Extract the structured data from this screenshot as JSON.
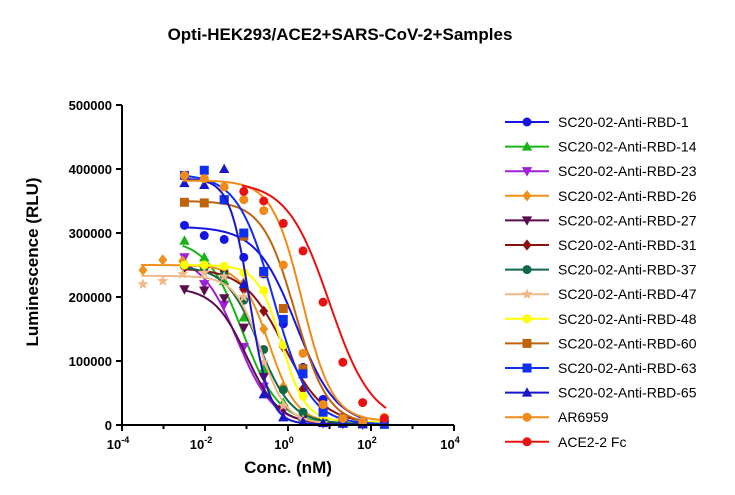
{
  "chart_data": {
    "type": "scatter",
    "title": "Opti-HEK293/ACE2+SARS-CoV-2+Samples",
    "xlabel": "Conc. (nM)",
    "ylabel": "Luminescence (RLU)",
    "x_scale": "log",
    "xlim": [
      0.0001,
      10000
    ],
    "ylim": [
      0,
      500000
    ],
    "x_ticks": [
      {
        "base": "10",
        "exp": "-4"
      },
      {
        "base": "10",
        "exp": "-2"
      },
      {
        "base": "10",
        "exp": "0"
      },
      {
        "base": "10",
        "exp": "2"
      },
      {
        "base": "10",
        "exp": "4"
      }
    ],
    "y_ticks": [
      "0",
      "100000",
      "200000",
      "300000",
      "400000",
      "500000"
    ],
    "y_tick_values": [
      0,
      100000,
      200000,
      300000,
      400000,
      500000
    ],
    "legend_position": "right",
    "series": [
      {
        "name": "SC20-02-Anti-RBD-1",
        "color": "#1515e0",
        "marker": "circle",
        "x": [
          0.0032,
          0.0096,
          0.029,
          0.086,
          0.26,
          0.77,
          2.3,
          7,
          21,
          63
        ],
        "y": [
          312000,
          296000,
          290000,
          262000,
          236000,
          158000,
          90000,
          40000,
          12000,
          3000
        ],
        "fit": {
          "bottom": 0,
          "top": 310000,
          "ec50": 1.6,
          "hill": 0.9
        }
      },
      {
        "name": "SC20-02-Anti-RBD-14",
        "color": "#18b418",
        "marker": "triangle-up",
        "x": [
          0.0032,
          0.0096,
          0.029,
          0.086,
          0.26,
          0.77,
          2.3,
          7,
          21,
          63
        ],
        "y": [
          288000,
          262000,
          225000,
          168000,
          87000,
          35000,
          12000,
          5000,
          3000,
          2000
        ],
        "fit": {
          "bottom": 2000,
          "top": 290000,
          "ec50": 0.08,
          "hill": 1.0
        }
      },
      {
        "name": "SC20-02-Anti-RBD-23",
        "color": "#a020d8",
        "marker": "triangle-down",
        "x": [
          0.0032,
          0.0096,
          0.029,
          0.086,
          0.26,
          0.77,
          2.3,
          7,
          21,
          63
        ],
        "y": [
          262000,
          220000,
          188000,
          122000,
          60000,
          22000,
          8000,
          3000,
          2000,
          1000
        ],
        "fit": {
          "bottom": 1000,
          "top": 265000,
          "ec50": 0.06,
          "hill": 1.0
        }
      },
      {
        "name": "SC20-02-Anti-RBD-26",
        "color": "#f0901c",
        "marker": "diamond",
        "x": [
          0.00032,
          0.00096,
          0.0029,
          0.0096,
          0.029,
          0.086,
          0.26,
          0.77,
          2.3,
          7
        ],
        "y": [
          242000,
          258000,
          256000,
          248000,
          242000,
          222000,
          150000,
          60000,
          15000,
          5000
        ],
        "fit": {
          "bottom": 3000,
          "top": 250000,
          "ec50": 0.35,
          "hill": 1.3
        }
      },
      {
        "name": "SC20-02-Anti-RBD-27",
        "color": "#5c0c50",
        "marker": "triangle-down",
        "x": [
          0.0032,
          0.0096,
          0.029,
          0.086,
          0.26,
          0.77,
          2.3,
          7,
          21,
          63
        ],
        "y": [
          212000,
          210000,
          198000,
          152000,
          75000,
          25000,
          8000,
          3000,
          2000,
          1000
        ],
        "fit": {
          "bottom": 1000,
          "top": 215000,
          "ec50": 0.1,
          "hill": 1.1
        }
      },
      {
        "name": "SC20-02-Anti-RBD-31",
        "color": "#8c1010",
        "marker": "diamond",
        "x": [
          0.0032,
          0.0096,
          0.029,
          0.086,
          0.26,
          0.77,
          2.3,
          7,
          21,
          63
        ],
        "y": [
          246000,
          245000,
          240000,
          212000,
          178000,
          122000,
          56000,
          25000,
          8000,
          3000
        ],
        "fit": {
          "bottom": 2000,
          "top": 245000,
          "ec50": 0.8,
          "hill": 0.9
        }
      },
      {
        "name": "SC20-02-Anti-RBD-37",
        "color": "#106848",
        "marker": "circle",
        "x": [
          0.0032,
          0.0096,
          0.029,
          0.086,
          0.26,
          0.77,
          2.3,
          7,
          21,
          63
        ],
        "y": [
          250000,
          246000,
          234000,
          195000,
          118000,
          55000,
          20000,
          7000,
          3000,
          2000
        ],
        "fit": {
          "bottom": 2000,
          "top": 248000,
          "ec50": 0.2,
          "hill": 1.1
        }
      },
      {
        "name": "SC20-02-Anti-RBD-47",
        "color": "#f0b888",
        "marker": "star",
        "x": [
          0.00032,
          0.00096,
          0.0029,
          0.0096,
          0.029,
          0.086,
          0.26,
          0.77,
          2.3,
          7
        ],
        "y": [
          220000,
          225000,
          236000,
          238000,
          232000,
          200000,
          98000,
          30000,
          8000,
          3000
        ],
        "fit": {
          "bottom": 2000,
          "top": 233000,
          "ec50": 0.22,
          "hill": 1.4
        }
      },
      {
        "name": "SC20-02-Anti-RBD-48",
        "color": "#ffff00",
        "marker": "circle",
        "x": [
          0.0032,
          0.0096,
          0.029,
          0.086,
          0.26,
          0.77,
          2.3,
          7,
          21,
          63,
          210
        ],
        "y": [
          250000,
          250000,
          248000,
          238000,
          210000,
          125000,
          45000,
          15000,
          6000,
          5000,
          10000
        ],
        "fit": {
          "bottom": 5000,
          "top": 250000,
          "ec50": 0.7,
          "hill": 1.5
        }
      },
      {
        "name": "SC20-02-Anti-RBD-60",
        "color": "#c0640c",
        "marker": "square",
        "x": [
          0.0032,
          0.0096,
          0.029,
          0.086,
          0.26,
          0.77,
          2.3,
          7,
          21,
          63
        ],
        "y": [
          348000,
          347000,
          352000,
          295000,
          238000,
          182000,
          88000,
          28000,
          10000,
          2000
        ],
        "fit": {
          "bottom": 1000,
          "top": 350000,
          "ec50": 1.5,
          "hill": 1.1
        }
      },
      {
        "name": "SC20-02-Anti-RBD-63",
        "color": "#1030f0",
        "marker": "square",
        "x": [
          0.0032,
          0.0096,
          0.029,
          0.086,
          0.26,
          0.77,
          2.3,
          7,
          21,
          63,
          210
        ],
        "y": [
          390000,
          398000,
          352000,
          300000,
          240000,
          165000,
          80000,
          20000,
          5000,
          3000,
          1000
        ],
        "fit": {
          "bottom": 1000,
          "top": 392000,
          "ec50": 0.45,
          "hill": 1.0
        }
      },
      {
        "name": "SC20-02-Anti-RBD-65",
        "color": "#1818c8",
        "marker": "triangle-up",
        "x": [
          0.0032,
          0.0096,
          0.029,
          0.086,
          0.26,
          0.77,
          2.3,
          7,
          21,
          63
        ],
        "y": [
          378000,
          375000,
          400000,
          220000,
          48000,
          12000,
          5000,
          3000,
          2000,
          1000
        ],
        "fit": {
          "bottom": 1000,
          "top": 385000,
          "ec50": 0.12,
          "hill": 1.8
        }
      },
      {
        "name": "AR6959",
        "color": "#f08a18",
        "marker": "circle",
        "x": [
          0.0032,
          0.0096,
          0.029,
          0.086,
          0.26,
          0.77,
          2.3,
          7,
          21,
          63,
          210
        ],
        "y": [
          390000,
          385000,
          372000,
          352000,
          335000,
          250000,
          112000,
          32000,
          10000,
          5000,
          12000
        ],
        "fit": {
          "bottom": 6000,
          "top": 382000,
          "ec50": 2.2,
          "hill": 1.2
        }
      },
      {
        "name": "ACE2-2 Fc",
        "color": "#e81212",
        "marker": "circle",
        "x": [
          0.086,
          0.26,
          0.77,
          2.3,
          7,
          21,
          63,
          210
        ],
        "y": [
          365000,
          350000,
          315000,
          272000,
          192000,
          98000,
          35000,
          10000
        ],
        "fit": {
          "bottom": 2000,
          "top": 380000,
          "ec50": 10,
          "hill": 0.85
        }
      }
    ]
  }
}
